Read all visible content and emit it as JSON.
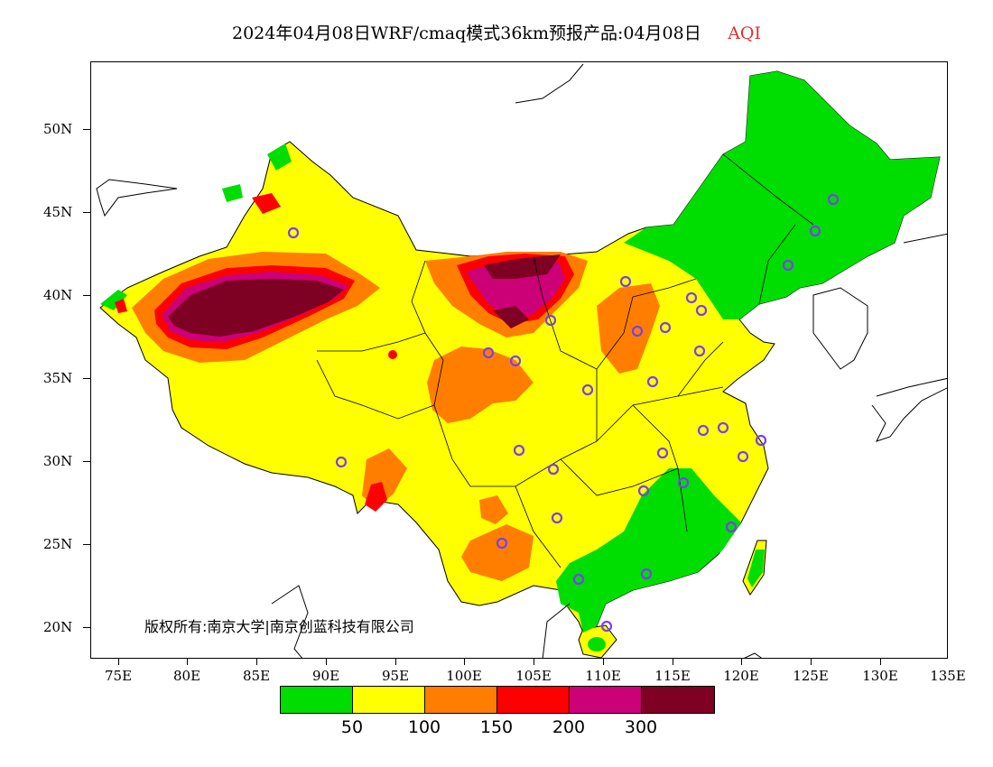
{
  "title": {
    "main": "2024年04月08日WRF/cmaq模式36km预报产品:04月08日",
    "variable": "AQI",
    "variable_color": "#e03030"
  },
  "axes": {
    "lat_labels": [
      "50N",
      "45N",
      "40N",
      "35N",
      "30N",
      "25N",
      "20N"
    ],
    "lon_labels": [
      "75E",
      "80E",
      "85E",
      "90E",
      "95E",
      "100E",
      "105E",
      "110E",
      "115E",
      "120E",
      "125E",
      "130E",
      "135E"
    ]
  },
  "legend": {
    "colors": [
      "#00dd00",
      "#ffff00",
      "#ff7e00",
      "#ff0000",
      "#cc0077",
      "#7e0023"
    ],
    "labels": [
      "50",
      "100",
      "150",
      "200",
      "300"
    ]
  },
  "copyright": "版权所有:南京大学|南京创蓝科技有限公司",
  "marker_color": "#7b3ff2"
}
